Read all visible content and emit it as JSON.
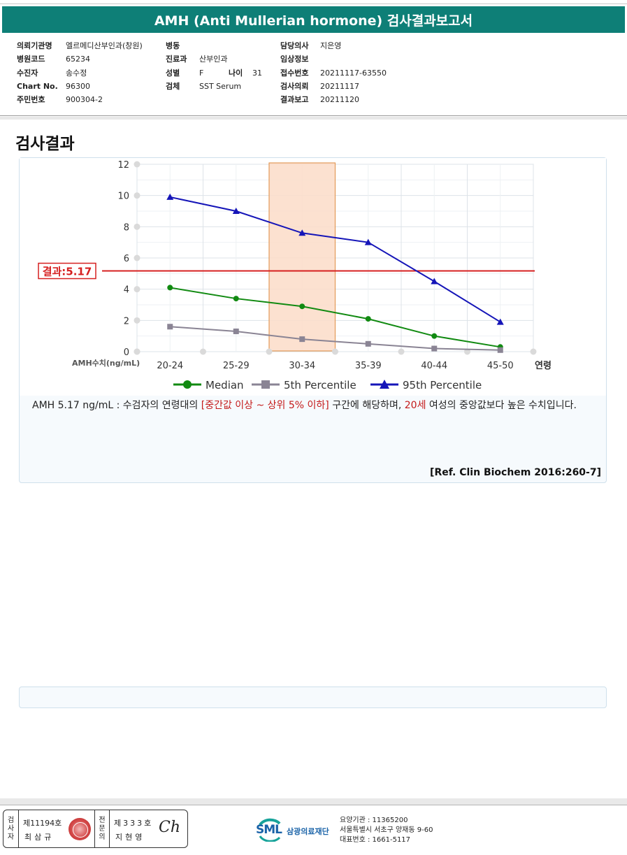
{
  "report": {
    "title": "AMH (Anti Mullerian hormone) 검사결과보고서"
  },
  "patient_info": {
    "col1": [
      {
        "label": "의뢰기관명",
        "value": "엘르메디산부인과(창원)"
      },
      {
        "label": "병원코드",
        "value": "65234"
      },
      {
        "label": "수진자",
        "value": "송수정"
      },
      {
        "label": "Chart No.",
        "value": "96300"
      },
      {
        "label": "주민번호",
        "value": "900304-2"
      }
    ],
    "col2": {
      "ward_label": "병동",
      "ward_value": "",
      "dept_label": "진료과",
      "dept_value": "산부인과",
      "sex_label": "성별",
      "sex_value": "F",
      "age_label": "나이",
      "age_value": "31",
      "specimen_label": "검체",
      "specimen_value": "SST Serum"
    },
    "col3": [
      {
        "label": "담당의사",
        "value": "지은영"
      },
      {
        "label": "임상정보",
        "value": ""
      },
      {
        "label": "접수번호",
        "value": "20211117-63550"
      },
      {
        "label": "검사의뢰",
        "value": "20211117"
      },
      {
        "label": "결과보고",
        "value": "20211120"
      }
    ]
  },
  "section": {
    "title": "검사결과"
  },
  "chart_data": {
    "type": "line",
    "categories": [
      "20-24",
      "25-29",
      "30-34",
      "35-39",
      "40-44",
      "45-50"
    ],
    "x_axis_label": "연령",
    "y_axis_label": "AMH수치(ng/mL)",
    "ylim": [
      0,
      12
    ],
    "y_ticks": [
      0,
      2,
      4,
      6,
      8,
      10,
      12
    ],
    "grid": true,
    "legend_position": "bottom",
    "highlight_category": "30-34",
    "result_line": {
      "value": 5.17,
      "label": "결과:5.17",
      "color": "#d62020"
    },
    "series": [
      {
        "name": "Median",
        "color": "#118a11",
        "marker": "circle",
        "values": [
          4.1,
          3.4,
          2.9,
          2.1,
          1.0,
          0.3
        ]
      },
      {
        "name": "5th Percentile",
        "color": "#8a8494",
        "marker": "square",
        "values": [
          1.6,
          1.3,
          0.8,
          0.5,
          0.2,
          0.1
        ]
      },
      {
        "name": "95th Percentile",
        "color": "#1515b8",
        "marker": "triangle",
        "values": [
          9.9,
          9.0,
          7.6,
          7.0,
          4.5,
          1.9
        ]
      }
    ]
  },
  "description": {
    "part1": "AMH  5.17 ng/mL : 수검자의 연령대의 ",
    "range_text": "[중간값 이상 ~ 상위 5% 이하]",
    "part2": "  구간에 해당하며, ",
    "age_text": "20세",
    "part3": " 여성의 중앙값보다 높은 수치입니다.",
    "reference": "[Ref. Clin Biochem 2016:260-7]"
  },
  "signatures": {
    "examiner_label": "검사자",
    "examiner_license": "제11194호",
    "examiner_name": "최삼규",
    "specialist_label": "전문의",
    "specialist_license": "제333호",
    "specialist_name": "지현영",
    "signature": "Ch"
  },
  "organization": {
    "logo_text": "SML",
    "name": "삼광의료재단",
    "code": "요양기관 : 11365200",
    "address": "서울특별시 서초구 양재동 9-60",
    "phone": "대표번호 : 1661-5117"
  }
}
